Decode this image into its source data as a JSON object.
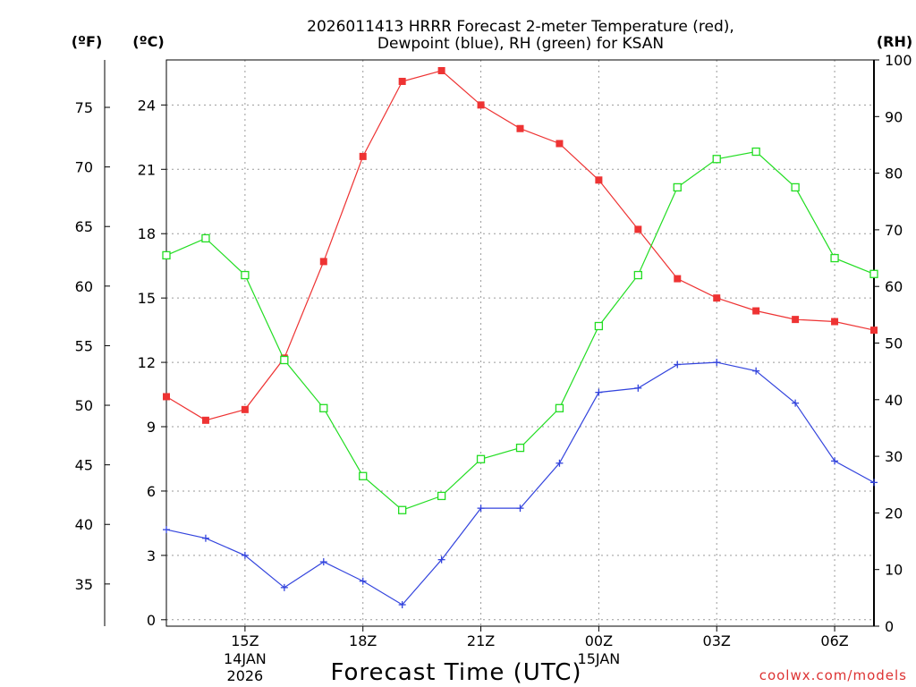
{
  "chart_data": {
    "type": "line",
    "title": [
      "2026011413 HRRR Forecast 2-meter Temperature (red),",
      "Dewpoint (blue), RH (green) for KSAN"
    ],
    "xlabel": "Forecast Time (UTC)",
    "watermark": "coolwx.com/models",
    "units": {
      "f": "(ºF)",
      "c": "(ºC)",
      "rh": "(RH)"
    },
    "x_hours": [
      13,
      14,
      15,
      16,
      17,
      18,
      19,
      20,
      21,
      22,
      23,
      24,
      25,
      26,
      27,
      28,
      29,
      30,
      31
    ],
    "xlim": [
      13,
      31
    ],
    "x_ticks": [
      {
        "hour": 15,
        "label": "15Z",
        "sub": [
          "14JAN",
          "2026"
        ]
      },
      {
        "hour": 18,
        "label": "18Z",
        "sub": []
      },
      {
        "hour": 21,
        "label": "21Z",
        "sub": []
      },
      {
        "hour": 24,
        "label": "00Z",
        "sub": [
          "15JAN"
        ]
      },
      {
        "hour": 27,
        "label": "03Z",
        "sub": []
      },
      {
        "hour": 30,
        "label": "06Z",
        "sub": []
      }
    ],
    "y_c_ticks": [
      0,
      3,
      6,
      9,
      12,
      15,
      18,
      21,
      24
    ],
    "ylim_c": [
      -0.3,
      26.1
    ],
    "y_f_ticks": [
      35,
      40,
      45,
      50,
      55,
      60,
      65,
      70,
      75
    ],
    "y_rh_ticks": [
      0,
      10,
      20,
      30,
      40,
      50,
      60,
      70,
      80,
      90,
      100
    ],
    "ylim_rh": [
      0,
      100
    ],
    "series": [
      {
        "name": "Temperature",
        "axis": "c",
        "color": "#ee3333",
        "marker": "filled-square",
        "values": [
          10.4,
          9.3,
          9.8,
          12.2,
          16.7,
          21.6,
          25.1,
          25.6,
          24.0,
          22.9,
          22.2,
          20.5,
          18.2,
          15.9,
          15.0,
          14.4,
          14.0,
          13.9,
          13.5
        ]
      },
      {
        "name": "Dewpoint",
        "axis": "c",
        "color": "#3344dd",
        "marker": "plus",
        "values": [
          4.2,
          3.8,
          3.0,
          1.5,
          2.7,
          1.8,
          0.7,
          2.8,
          5.2,
          5.2,
          7.3,
          10.6,
          10.8,
          11.9,
          12.0,
          11.6,
          10.1,
          7.4,
          6.4
        ]
      },
      {
        "name": "RH",
        "axis": "rh",
        "color": "#22dd22",
        "marker": "open-square",
        "values": [
          65.5,
          68.5,
          62.0,
          47.0,
          38.5,
          26.5,
          20.5,
          23.0,
          29.5,
          31.5,
          38.5,
          53.0,
          62.0,
          77.5,
          82.5,
          83.8,
          77.5,
          65.0,
          62.2
        ]
      }
    ]
  }
}
